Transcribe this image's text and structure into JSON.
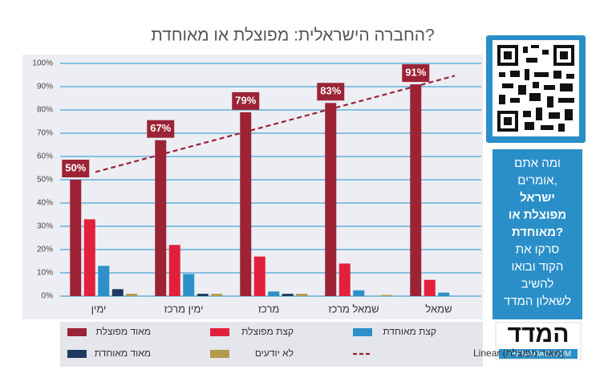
{
  "chart_data": {
    "type": "bar",
    "title": "החברה הישראלית: מפוצלת או מאוחדת?",
    "categories": [
      "ימין",
      "ימין מרכז",
      "מרכז",
      "שמאל מרכז",
      "שמאל"
    ],
    "series": [
      {
        "name": "מאוד מפוצלת",
        "color": "#9b2335",
        "values": [
          50,
          67,
          79,
          83,
          91
        ],
        "value_labels": [
          "50%",
          "67%",
          "79%",
          "83%",
          "91%"
        ]
      },
      {
        "name": "קצת מפוצלת",
        "color": "#e2203c",
        "values": [
          33,
          22,
          17,
          14,
          7
        ]
      },
      {
        "name": "קצת מאוחדת",
        "color": "#2e90c8",
        "values": [
          13,
          9.5,
          2,
          2.5,
          1.5
        ]
      },
      {
        "name": "מאוד מאוחדת",
        "color": "#1f3a5f",
        "values": [
          3,
          1,
          1,
          0,
          0
        ]
      },
      {
        "name": "לא יודעים",
        "color": "#b39a4c",
        "values": [
          1,
          1,
          1,
          0.5,
          0
        ]
      }
    ],
    "trendline": {
      "name": "(מאוד מפוצלת) Linear",
      "color": "#9b2335",
      "series": 0
    },
    "ylim": [
      0,
      100
    ],
    "yticks": [
      {
        "value": 0,
        "label": "0%"
      },
      {
        "value": 10,
        "label": "10%"
      },
      {
        "value": 20,
        "label": "20%"
      },
      {
        "value": 30,
        "label": "30%"
      },
      {
        "value": 40,
        "label": "40%"
      },
      {
        "value": 50,
        "label": "50%"
      },
      {
        "value": 60,
        "label": "60%"
      },
      {
        "value": 70,
        "label": "70%"
      },
      {
        "value": 80,
        "label": "80%"
      },
      {
        "value": 90,
        "label": "90%"
      },
      {
        "value": 100,
        "label": "100%"
      }
    ],
    "grid": true
  },
  "panel": {
    "lines": [
      {
        "text": "ומה אתם",
        "bold": false
      },
      {
        "text": "אומרים,",
        "bold": false
      },
      {
        "text": "ישראל",
        "bold": true
      },
      {
        "text": "מפוצלת או",
        "bold": true
      },
      {
        "text": "מאוחדת?",
        "bold": true
      },
      {
        "text": "סרקו את",
        "bold": false
      },
      {
        "text": "הקוד ובואו",
        "bold": false
      },
      {
        "text": "להשיב",
        "bold": false
      },
      {
        "text": "לשאלון המדד",
        "bold": false
      }
    ],
    "logo": "המדד",
    "logo_url": "THEMADAD.COM"
  }
}
